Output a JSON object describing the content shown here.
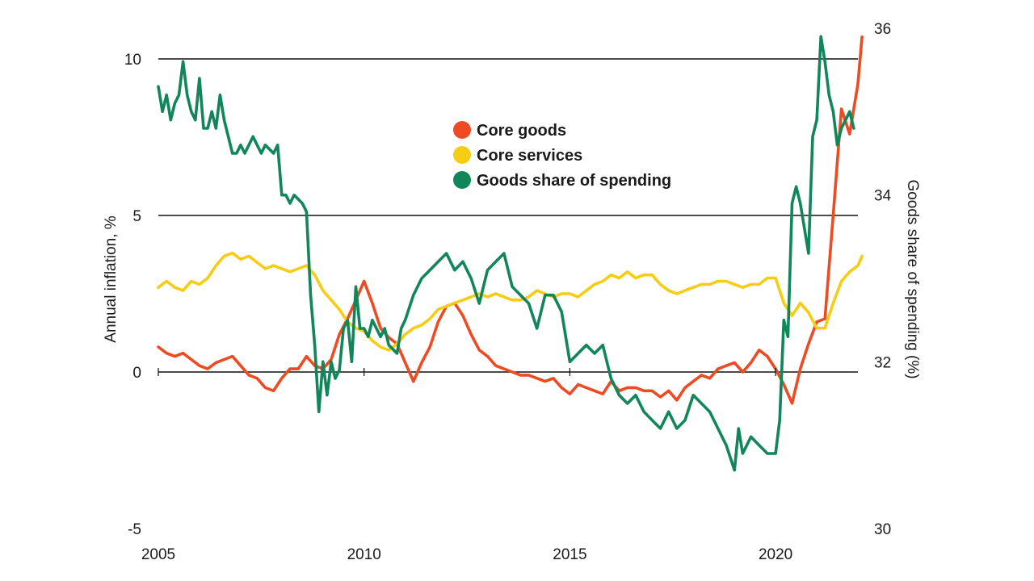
{
  "chart_data": {
    "type": "line",
    "title": "",
    "xlabel": "",
    "ylabel_left": "Annual inflation, %",
    "ylabel_right": "Goods share of spending (%)",
    "xlim": [
      2005,
      2022
    ],
    "ylim_left": [
      -5,
      10
    ],
    "ylim_right": [
      30,
      36
    ],
    "x_ticks": [
      "2005",
      "2010",
      "2015",
      "2020"
    ],
    "y_ticks_left": [
      "10",
      "5",
      "0",
      "-5"
    ],
    "y_ticks_right": [
      "36",
      "34",
      "32",
      "30"
    ],
    "grid": "horizontal at left-axis ticks",
    "legend_position": "upper-center",
    "series": [
      {
        "name": "Core goods",
        "axis": "left",
        "color": "#ee4b22",
        "points": [
          [
            2005.0,
            0.8
          ],
          [
            2005.2,
            0.6
          ],
          [
            2005.4,
            0.5
          ],
          [
            2005.6,
            0.6
          ],
          [
            2005.8,
            0.4
          ],
          [
            2006.0,
            0.2
          ],
          [
            2006.2,
            0.1
          ],
          [
            2006.4,
            0.3
          ],
          [
            2006.6,
            0.4
          ],
          [
            2006.8,
            0.5
          ],
          [
            2007.0,
            0.2
          ],
          [
            2007.2,
            -0.1
          ],
          [
            2007.4,
            -0.2
          ],
          [
            2007.6,
            -0.5
          ],
          [
            2007.8,
            -0.6
          ],
          [
            2008.0,
            -0.2
          ],
          [
            2008.2,
            0.1
          ],
          [
            2008.4,
            0.1
          ],
          [
            2008.6,
            0.5
          ],
          [
            2008.8,
            0.2
          ],
          [
            2009.0,
            0.1
          ],
          [
            2009.2,
            0.4
          ],
          [
            2009.4,
            1.2
          ],
          [
            2009.6,
            1.7
          ],
          [
            2009.8,
            2.3
          ],
          [
            2010.0,
            2.9
          ],
          [
            2010.2,
            2.2
          ],
          [
            2010.4,
            1.4
          ],
          [
            2010.6,
            1.1
          ],
          [
            2010.8,
            0.9
          ],
          [
            2011.0,
            0.3
          ],
          [
            2011.2,
            -0.3
          ],
          [
            2011.4,
            0.3
          ],
          [
            2011.6,
            0.8
          ],
          [
            2011.8,
            1.6
          ],
          [
            2012.0,
            2.1
          ],
          [
            2012.2,
            2.2
          ],
          [
            2012.4,
            1.8
          ],
          [
            2012.6,
            1.2
          ],
          [
            2012.8,
            0.7
          ],
          [
            2013.0,
            0.5
          ],
          [
            2013.2,
            0.2
          ],
          [
            2013.4,
            0.1
          ],
          [
            2013.6,
            0.0
          ],
          [
            2013.8,
            -0.1
          ],
          [
            2014.0,
            -0.1
          ],
          [
            2014.2,
            -0.2
          ],
          [
            2014.4,
            -0.3
          ],
          [
            2014.6,
            -0.2
          ],
          [
            2014.8,
            -0.5
          ],
          [
            2015.0,
            -0.7
          ],
          [
            2015.2,
            -0.4
          ],
          [
            2015.4,
            -0.5
          ],
          [
            2015.6,
            -0.6
          ],
          [
            2015.8,
            -0.7
          ],
          [
            2016.0,
            -0.3
          ],
          [
            2016.2,
            -0.6
          ],
          [
            2016.4,
            -0.5
          ],
          [
            2016.6,
            -0.5
          ],
          [
            2016.8,
            -0.6
          ],
          [
            2017.0,
            -0.6
          ],
          [
            2017.2,
            -0.8
          ],
          [
            2017.4,
            -0.6
          ],
          [
            2017.6,
            -0.9
          ],
          [
            2017.8,
            -0.5
          ],
          [
            2018.0,
            -0.3
          ],
          [
            2018.2,
            -0.1
          ],
          [
            2018.4,
            -0.2
          ],
          [
            2018.6,
            0.1
          ],
          [
            2018.8,
            0.2
          ],
          [
            2019.0,
            0.3
          ],
          [
            2019.2,
            0.0
          ],
          [
            2019.4,
            0.3
          ],
          [
            2019.6,
            0.7
          ],
          [
            2019.8,
            0.5
          ],
          [
            2020.0,
            0.1
          ],
          [
            2020.2,
            -0.4
          ],
          [
            2020.4,
            -1.0
          ],
          [
            2020.6,
            0.1
          ],
          [
            2020.8,
            0.9
          ],
          [
            2021.0,
            1.6
          ],
          [
            2021.2,
            1.7
          ],
          [
            2021.4,
            5.0
          ],
          [
            2021.6,
            8.4
          ],
          [
            2021.8,
            7.6
          ],
          [
            2022.0,
            9.2
          ],
          [
            2022.1,
            10.7
          ]
        ]
      },
      {
        "name": "Core services",
        "axis": "left",
        "color": "#f7cc15",
        "points": [
          [
            2005.0,
            2.7
          ],
          [
            2005.2,
            2.9
          ],
          [
            2005.4,
            2.7
          ],
          [
            2005.6,
            2.6
          ],
          [
            2005.8,
            2.9
          ],
          [
            2006.0,
            2.8
          ],
          [
            2006.2,
            3.0
          ],
          [
            2006.4,
            3.4
          ],
          [
            2006.6,
            3.7
          ],
          [
            2006.8,
            3.8
          ],
          [
            2007.0,
            3.6
          ],
          [
            2007.2,
            3.7
          ],
          [
            2007.4,
            3.5
          ],
          [
            2007.6,
            3.3
          ],
          [
            2007.8,
            3.4
          ],
          [
            2008.0,
            3.3
          ],
          [
            2008.2,
            3.2
          ],
          [
            2008.4,
            3.3
          ],
          [
            2008.6,
            3.4
          ],
          [
            2008.8,
            3.1
          ],
          [
            2009.0,
            2.6
          ],
          [
            2009.2,
            2.3
          ],
          [
            2009.4,
            2.0
          ],
          [
            2009.6,
            1.6
          ],
          [
            2009.8,
            1.4
          ],
          [
            2010.0,
            1.3
          ],
          [
            2010.2,
            1.0
          ],
          [
            2010.4,
            0.8
          ],
          [
            2010.6,
            0.7
          ],
          [
            2010.8,
            0.9
          ],
          [
            2011.0,
            1.2
          ],
          [
            2011.2,
            1.4
          ],
          [
            2011.4,
            1.5
          ],
          [
            2011.6,
            1.7
          ],
          [
            2011.8,
            2.0
          ],
          [
            2012.0,
            2.1
          ],
          [
            2012.2,
            2.2
          ],
          [
            2012.4,
            2.3
          ],
          [
            2012.6,
            2.4
          ],
          [
            2012.8,
            2.5
          ],
          [
            2013.0,
            2.4
          ],
          [
            2013.2,
            2.5
          ],
          [
            2013.4,
            2.4
          ],
          [
            2013.6,
            2.3
          ],
          [
            2013.8,
            2.3
          ],
          [
            2014.0,
            2.4
          ],
          [
            2014.2,
            2.6
          ],
          [
            2014.4,
            2.5
          ],
          [
            2014.6,
            2.4
          ],
          [
            2014.8,
            2.5
          ],
          [
            2015.0,
            2.5
          ],
          [
            2015.2,
            2.4
          ],
          [
            2015.4,
            2.6
          ],
          [
            2015.6,
            2.8
          ],
          [
            2015.8,
            2.9
          ],
          [
            2016.0,
            3.1
          ],
          [
            2016.2,
            3.0
          ],
          [
            2016.4,
            3.2
          ],
          [
            2016.6,
            3.0
          ],
          [
            2016.8,
            3.1
          ],
          [
            2017.0,
            3.1
          ],
          [
            2017.2,
            2.8
          ],
          [
            2017.4,
            2.6
          ],
          [
            2017.6,
            2.5
          ],
          [
            2017.8,
            2.6
          ],
          [
            2018.0,
            2.7
          ],
          [
            2018.2,
            2.8
          ],
          [
            2018.4,
            2.8
          ],
          [
            2018.6,
            2.9
          ],
          [
            2018.8,
            2.9
          ],
          [
            2019.0,
            2.8
          ],
          [
            2019.2,
            2.7
          ],
          [
            2019.4,
            2.8
          ],
          [
            2019.6,
            2.8
          ],
          [
            2019.8,
            3.0
          ],
          [
            2020.0,
            3.0
          ],
          [
            2020.2,
            2.2
          ],
          [
            2020.4,
            1.8
          ],
          [
            2020.6,
            2.2
          ],
          [
            2020.8,
            1.9
          ],
          [
            2021.0,
            1.4
          ],
          [
            2021.2,
            1.4
          ],
          [
            2021.4,
            2.2
          ],
          [
            2021.6,
            2.9
          ],
          [
            2021.8,
            3.2
          ],
          [
            2022.0,
            3.4
          ],
          [
            2022.1,
            3.7
          ]
        ]
      },
      {
        "name": "Goods share of spending",
        "axis": "right",
        "color": "#11865a",
        "points": [
          [
            2005.0,
            35.3
          ],
          [
            2005.1,
            35.0
          ],
          [
            2005.2,
            35.2
          ],
          [
            2005.3,
            34.9
          ],
          [
            2005.4,
            35.1
          ],
          [
            2005.5,
            35.2
          ],
          [
            2005.6,
            35.6
          ],
          [
            2005.7,
            35.2
          ],
          [
            2005.8,
            35.0
          ],
          [
            2005.9,
            34.9
          ],
          [
            2006.0,
            35.4
          ],
          [
            2006.1,
            34.8
          ],
          [
            2006.2,
            34.8
          ],
          [
            2006.3,
            35.0
          ],
          [
            2006.4,
            34.8
          ],
          [
            2006.5,
            35.2
          ],
          [
            2006.6,
            34.9
          ],
          [
            2006.7,
            34.7
          ],
          [
            2006.8,
            34.5
          ],
          [
            2006.9,
            34.5
          ],
          [
            2007.0,
            34.6
          ],
          [
            2007.1,
            34.5
          ],
          [
            2007.2,
            34.6
          ],
          [
            2007.3,
            34.7
          ],
          [
            2007.4,
            34.6
          ],
          [
            2007.5,
            34.5
          ],
          [
            2007.6,
            34.6
          ],
          [
            2007.8,
            34.5
          ],
          [
            2007.9,
            34.6
          ],
          [
            2008.0,
            34.0
          ],
          [
            2008.1,
            34.0
          ],
          [
            2008.2,
            33.9
          ],
          [
            2008.3,
            34.0
          ],
          [
            2008.5,
            33.9
          ],
          [
            2008.6,
            33.8
          ],
          [
            2008.7,
            32.8
          ],
          [
            2008.8,
            32.2
          ],
          [
            2008.9,
            31.4
          ],
          [
            2009.0,
            32.0
          ],
          [
            2009.1,
            31.6
          ],
          [
            2009.2,
            32.0
          ],
          [
            2009.3,
            31.8
          ],
          [
            2009.4,
            31.9
          ],
          [
            2009.5,
            32.4
          ],
          [
            2009.6,
            32.5
          ],
          [
            2009.7,
            32.0
          ],
          [
            2009.8,
            32.9
          ],
          [
            2009.9,
            32.4
          ],
          [
            2010.0,
            32.4
          ],
          [
            2010.1,
            32.3
          ],
          [
            2010.2,
            32.5
          ],
          [
            2010.4,
            32.3
          ],
          [
            2010.5,
            32.4
          ],
          [
            2010.6,
            32.2
          ],
          [
            2010.8,
            32.1
          ],
          [
            2010.9,
            32.4
          ],
          [
            2011.0,
            32.5
          ],
          [
            2011.2,
            32.8
          ],
          [
            2011.4,
            33.0
          ],
          [
            2011.6,
            33.1
          ],
          [
            2011.8,
            33.2
          ],
          [
            2012.0,
            33.3
          ],
          [
            2012.2,
            33.1
          ],
          [
            2012.4,
            33.2
          ],
          [
            2012.6,
            33.0
          ],
          [
            2012.8,
            32.7
          ],
          [
            2013.0,
            33.1
          ],
          [
            2013.2,
            33.2
          ],
          [
            2013.4,
            33.3
          ],
          [
            2013.6,
            32.9
          ],
          [
            2013.8,
            32.8
          ],
          [
            2014.0,
            32.7
          ],
          [
            2014.2,
            32.4
          ],
          [
            2014.4,
            32.8
          ],
          [
            2014.6,
            32.8
          ],
          [
            2014.8,
            32.6
          ],
          [
            2015.0,
            32.0
          ],
          [
            2015.2,
            32.1
          ],
          [
            2015.4,
            32.2
          ],
          [
            2015.6,
            32.1
          ],
          [
            2015.8,
            32.2
          ],
          [
            2016.0,
            31.8
          ],
          [
            2016.2,
            31.6
          ],
          [
            2016.4,
            31.5
          ],
          [
            2016.6,
            31.6
          ],
          [
            2016.8,
            31.4
          ],
          [
            2017.0,
            31.3
          ],
          [
            2017.2,
            31.2
          ],
          [
            2017.4,
            31.4
          ],
          [
            2017.6,
            31.2
          ],
          [
            2017.8,
            31.3
          ],
          [
            2018.0,
            31.6
          ],
          [
            2018.2,
            31.5
          ],
          [
            2018.4,
            31.4
          ],
          [
            2018.6,
            31.2
          ],
          [
            2018.8,
            31.0
          ],
          [
            2019.0,
            30.7
          ],
          [
            2019.1,
            31.2
          ],
          [
            2019.2,
            30.9
          ],
          [
            2019.4,
            31.1
          ],
          [
            2019.6,
            31.0
          ],
          [
            2019.8,
            30.9
          ],
          [
            2020.0,
            30.9
          ],
          [
            2020.1,
            31.3
          ],
          [
            2020.2,
            32.5
          ],
          [
            2020.3,
            32.3
          ],
          [
            2020.4,
            33.9
          ],
          [
            2020.5,
            34.1
          ],
          [
            2020.6,
            33.9
          ],
          [
            2020.7,
            33.6
          ],
          [
            2020.8,
            33.3
          ],
          [
            2020.9,
            34.7
          ],
          [
            2021.0,
            34.9
          ],
          [
            2021.1,
            35.9
          ],
          [
            2021.2,
            35.6
          ],
          [
            2021.3,
            35.2
          ],
          [
            2021.4,
            35.0
          ],
          [
            2021.5,
            34.6
          ],
          [
            2021.6,
            34.8
          ],
          [
            2021.8,
            35.0
          ],
          [
            2021.9,
            34.8
          ]
        ]
      }
    ]
  }
}
